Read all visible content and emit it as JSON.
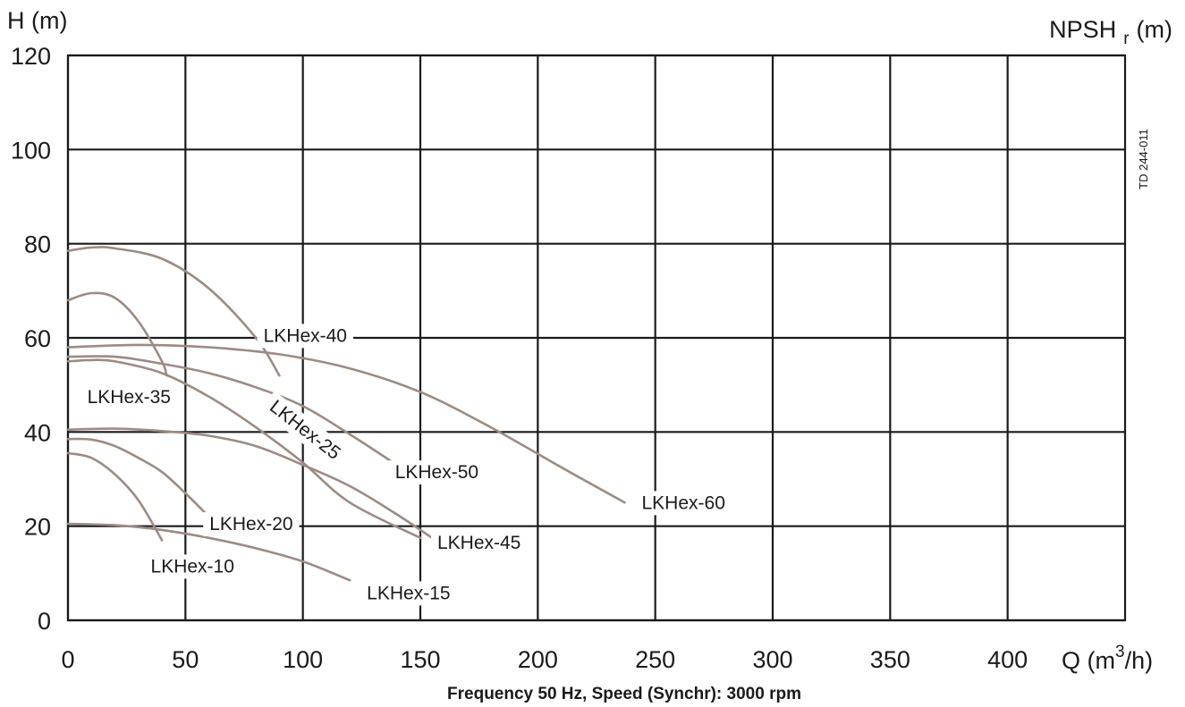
{
  "chart_data": {
    "type": "line",
    "title": "",
    "footer": "Frequency 50 Hz, Speed (Synchr): 3000 rpm",
    "xlabel": {
      "prefix": "Q (m",
      "sup": "3",
      "suffix": "/h)"
    },
    "ylabel_left": "H (m)",
    "ylabel_right": {
      "prefix": "NPSH",
      "sub": "r",
      "suffix": "(m)"
    },
    "side_note": "TD 244-011",
    "xlim": [
      0,
      450
    ],
    "ylim": [
      0,
      120
    ],
    "x_ticks": [
      0,
      50,
      100,
      150,
      200,
      250,
      300,
      350,
      400
    ],
    "y_ticks": [
      0,
      20,
      40,
      60,
      80,
      100,
      120
    ],
    "grid": true,
    "legend": "none",
    "curve_color": "#9b8b84",
    "series": [
      {
        "name": "LKHex-10",
        "points": [
          [
            0,
            35.5
          ],
          [
            10,
            34.5
          ],
          [
            20,
            31
          ],
          [
            30,
            25.5
          ],
          [
            40,
            17
          ]
        ]
      },
      {
        "name": "LKHex-15",
        "points": [
          [
            0,
            20.5
          ],
          [
            20,
            20.2
          ],
          [
            40,
            19.2
          ],
          [
            60,
            17.5
          ],
          [
            80,
            15.3
          ],
          [
            100,
            12.5
          ],
          [
            120,
            8.5
          ]
        ]
      },
      {
        "name": "LKHex-20",
        "points": [
          [
            0,
            38.5
          ],
          [
            10,
            38.4
          ],
          [
            20,
            37
          ],
          [
            30,
            34.5
          ],
          [
            40,
            31.5
          ],
          [
            50,
            27
          ],
          [
            60,
            22
          ]
        ]
      },
      {
        "name": "LKHex-25",
        "points": [
          [
            0,
            55
          ],
          [
            10,
            55.3
          ],
          [
            20,
            55
          ],
          [
            40,
            52.5
          ],
          [
            60,
            47.5
          ],
          [
            80,
            41
          ],
          [
            100,
            33.5
          ],
          [
            120,
            25
          ],
          [
            150,
            17.5
          ]
        ]
      },
      {
        "name": "LKHex-35",
        "points": [
          [
            0,
            68
          ],
          [
            10,
            69.5
          ],
          [
            20,
            68.5
          ],
          [
            30,
            63.5
          ],
          [
            40,
            55
          ],
          [
            42,
            52
          ]
        ]
      },
      {
        "name": "LKHex-40",
        "points": [
          [
            0,
            78.5
          ],
          [
            10,
            79.2
          ],
          [
            20,
            79
          ],
          [
            40,
            76.8
          ],
          [
            60,
            70.5
          ],
          [
            80,
            60
          ],
          [
            90,
            52
          ]
        ]
      },
      {
        "name": "LKHex-45",
        "points": [
          [
            0,
            40.5
          ],
          [
            20,
            40.7
          ],
          [
            40,
            40.2
          ],
          [
            60,
            39.2
          ],
          [
            80,
            37
          ],
          [
            100,
            33
          ],
          [
            120,
            28.5
          ],
          [
            140,
            22.5
          ],
          [
            155,
            17.5
          ]
        ]
      },
      {
        "name": "LKHex-50",
        "points": [
          [
            0,
            56
          ],
          [
            20,
            56
          ],
          [
            40,
            54.5
          ],
          [
            60,
            52.5
          ],
          [
            80,
            49.5
          ],
          [
            100,
            45.5
          ],
          [
            120,
            39.5
          ],
          [
            140,
            33
          ]
        ]
      },
      {
        "name": "LKHex-60",
        "points": [
          [
            0,
            58
          ],
          [
            30,
            58.5
          ],
          [
            60,
            58
          ],
          [
            90,
            56.5
          ],
          [
            120,
            53.5
          ],
          [
            150,
            48.5
          ],
          [
            180,
            41
          ],
          [
            210,
            32.5
          ],
          [
            237,
            25
          ]
        ]
      }
    ],
    "annotations": [
      {
        "text": "LKHex-40",
        "series": "LKHex-40",
        "x": 101,
        "y": 60.5,
        "rotate": 0
      },
      {
        "text": "LKHex-35",
        "series": "LKHex-35",
        "x": 26,
        "y": 47.5,
        "rotate": 0
      },
      {
        "text": "LKHex-25",
        "series": "LKHex-25",
        "x": 101,
        "y": 40.5,
        "rotate": 38
      },
      {
        "text": "LKHex-50",
        "series": "LKHex-50",
        "x": 157,
        "y": 31.5,
        "rotate": 0
      },
      {
        "text": "LKHex-60",
        "series": "LKHex-60",
        "x": 262,
        "y": 25,
        "rotate": 0
      },
      {
        "text": "LKHex-20",
        "series": "LKHex-20",
        "x": 78,
        "y": 20.5,
        "rotate": 0
      },
      {
        "text": "LKHex-45",
        "series": "LKHex-45",
        "x": 175,
        "y": 16.5,
        "rotate": 0
      },
      {
        "text": "LKHex-10",
        "series": "LKHex-10",
        "x": 53,
        "y": 11.5,
        "rotate": 0
      },
      {
        "text": "LKHex-15",
        "series": "LKHex-15",
        "x": 145,
        "y": 5.8,
        "rotate": 0
      }
    ]
  }
}
